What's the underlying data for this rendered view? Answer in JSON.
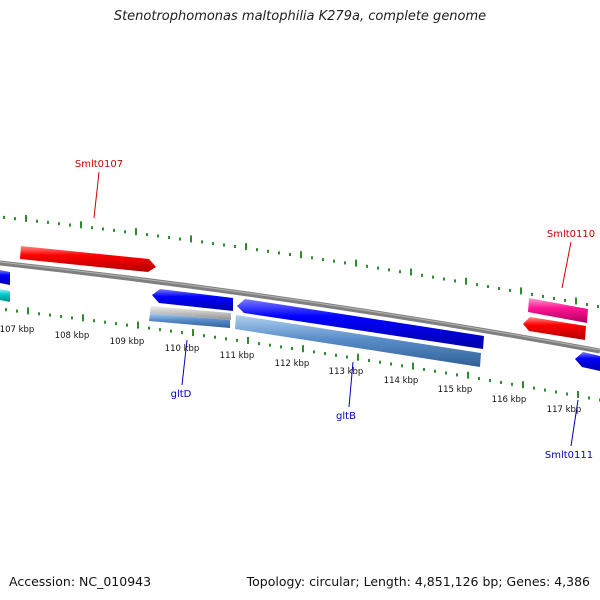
{
  "title": "Stenotrophomonas maltophilia K279a, complete genome",
  "footer": {
    "accession": "Accession: NC_010943",
    "topology": "Topology: circular; Length: 4,851,126 bp; Genes: 4,386"
  },
  "ticks": [
    "107 kbp",
    "108 kbp",
    "109 kbp",
    "110 kbp",
    "111 kbp",
    "112 kbp",
    "113 kbp",
    "114 kbp",
    "115 kbp",
    "116 kbp",
    "117 kbp"
  ],
  "labels": [
    "Smlt0107",
    "Smlt0110",
    "gltD",
    "gltB",
    "Smlt0111"
  ],
  "colors": {
    "tick": "#2e8b2e",
    "backbone": "#7f7f7f",
    "gene_red": "#ff0000",
    "gene_blue": "#0000ff",
    "gene_pink": "#ff1493",
    "gene_cyan": "#00cccc",
    "gene_steel": "#4f86c6",
    "gene_grey": "#b8b8b8",
    "label_red": "#cc0000",
    "label_blue": "#0000bb"
  }
}
